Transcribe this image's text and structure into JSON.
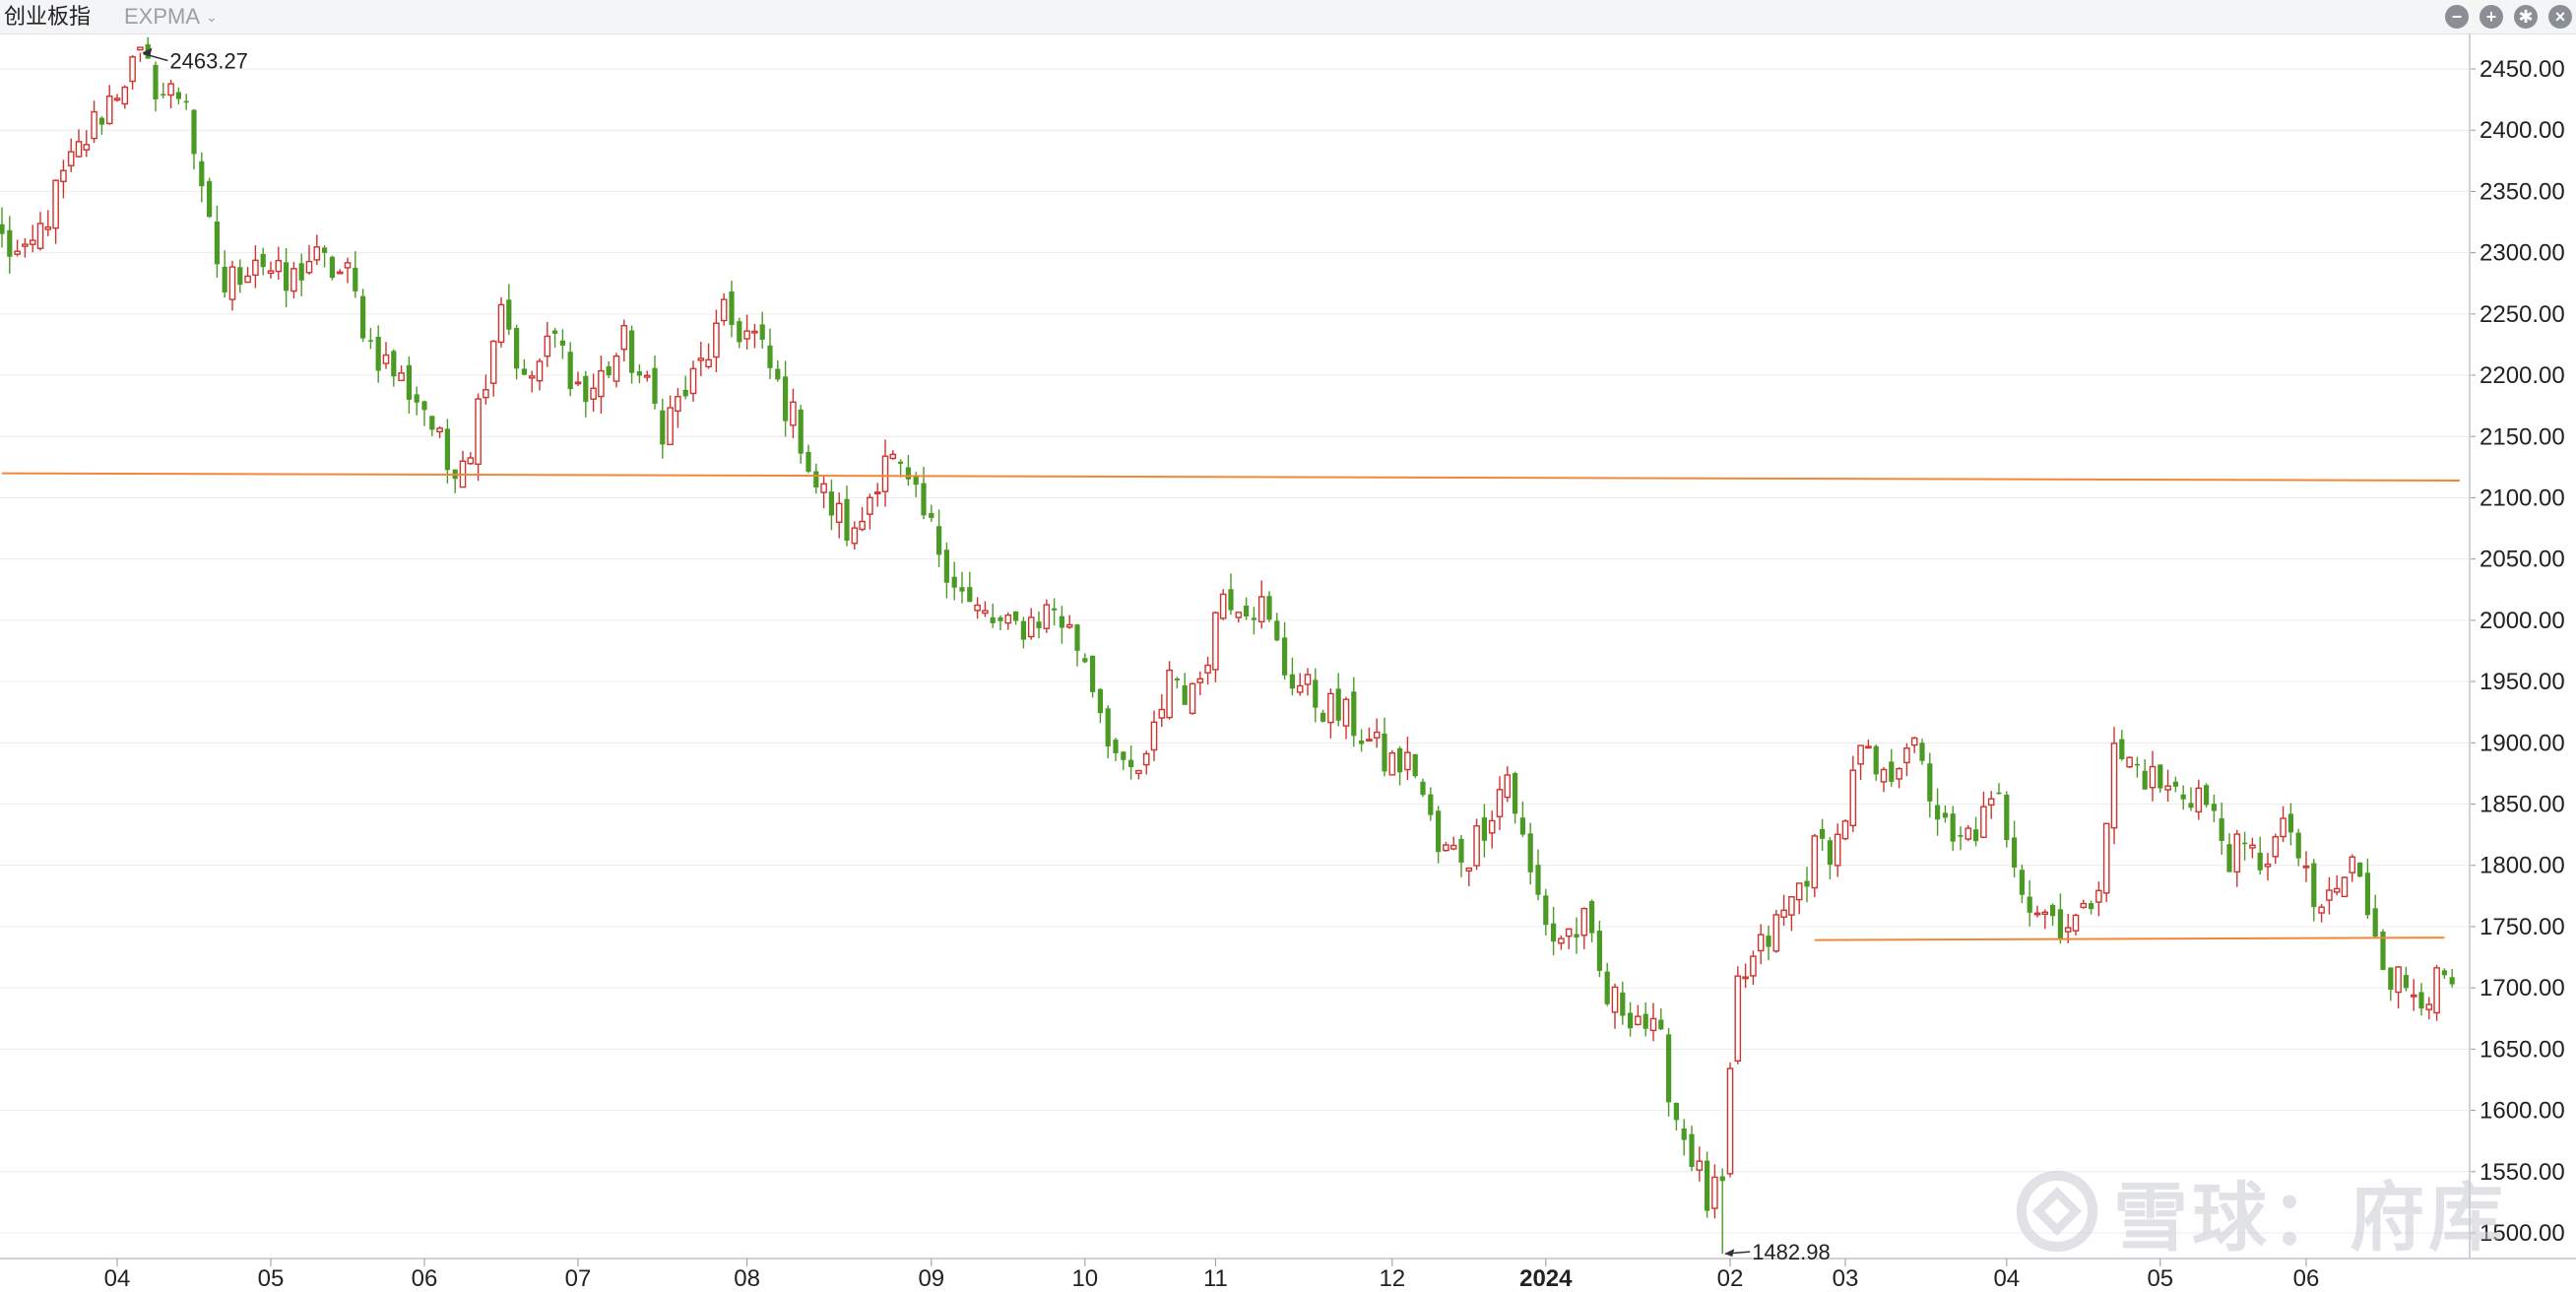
{
  "header": {
    "title": "创业板指",
    "indicator": "EXPMA",
    "tools": [
      {
        "name": "zoom-out-icon",
        "glyph": "−"
      },
      {
        "name": "zoom-in-icon",
        "glyph": "+"
      },
      {
        "name": "gear-icon",
        "glyph": "✱"
      },
      {
        "name": "close-icon",
        "glyph": "×"
      }
    ]
  },
  "watermark": {
    "text": "雪球：府库"
  },
  "colors": {
    "up": "#d0332d",
    "down": "#4b9a24",
    "trendline": "#f0873a",
    "grid": "#ececec",
    "axis": "#cfd2d6",
    "text": "#222222"
  },
  "chart_data": {
    "type": "candlestick",
    "title": "",
    "xlabel": "",
    "ylabel": "",
    "ylim": [
      1480,
      2475
    ],
    "y_ticks": [
      "1500.00",
      "1550.00",
      "1600.00",
      "1650.00",
      "1700.00",
      "1750.00",
      "1800.00",
      "1850.00",
      "1900.00",
      "1950.00",
      "2000.00",
      "2050.00",
      "2100.00",
      "2150.00",
      "2200.00",
      "2250.00",
      "2300.00",
      "2350.00",
      "2400.00",
      "2450.00"
    ],
    "x_ticks": [
      {
        "label": "04",
        "index": 15,
        "bold": false
      },
      {
        "label": "05",
        "index": 35,
        "bold": false
      },
      {
        "label": "06",
        "index": 55,
        "bold": false
      },
      {
        "label": "07",
        "index": 75,
        "bold": false
      },
      {
        "label": "08",
        "index": 97,
        "bold": false
      },
      {
        "label": "09",
        "index": 121,
        "bold": false
      },
      {
        "label": "10",
        "index": 141,
        "bold": false
      },
      {
        "label": "11",
        "index": 158,
        "bold": false
      },
      {
        "label": "12",
        "index": 181,
        "bold": false
      },
      {
        "label": "2024",
        "index": 201,
        "bold": true
      },
      {
        "label": "02",
        "index": 225,
        "bold": false
      },
      {
        "label": "03",
        "index": 240,
        "bold": false
      },
      {
        "label": "04",
        "index": 261,
        "bold": false
      },
      {
        "label": "05",
        "index": 281,
        "bold": false
      },
      {
        "label": "06",
        "index": 300,
        "bold": false
      }
    ],
    "annotations": [
      {
        "text": "2463.27",
        "index": 18,
        "value": 2463.27
      },
      {
        "text": "1482.98",
        "index": 224,
        "value": 1482.98
      }
    ],
    "trendlines": [
      {
        "from": {
          "index": 0,
          "value": 2120
        },
        "to": {
          "index": 320,
          "value": 2114
        }
      },
      {
        "from": {
          "index": 236,
          "value": 1739
        },
        "to": {
          "index": 318,
          "value": 1741
        }
      }
    ],
    "anchors": [
      [
        0,
        2310
      ],
      [
        3,
        2290
      ],
      [
        8,
        2360
      ],
      [
        12,
        2405
      ],
      [
        16,
        2445
      ],
      [
        18,
        2455
      ],
      [
        21,
        2430
      ],
      [
        24,
        2430
      ],
      [
        26,
        2340
      ],
      [
        29,
        2270
      ],
      [
        33,
        2300
      ],
      [
        37,
        2270
      ],
      [
        40,
        2295
      ],
      [
        45,
        2280
      ],
      [
        48,
        2225
      ],
      [
        52,
        2195
      ],
      [
        55,
        2175
      ],
      [
        58,
        2125
      ],
      [
        61,
        2145
      ],
      [
        65,
        2265
      ],
      [
        68,
        2190
      ],
      [
        72,
        2230
      ],
      [
        76,
        2180
      ],
      [
        81,
        2225
      ],
      [
        86,
        2160
      ],
      [
        90,
        2195
      ],
      [
        94,
        2245
      ],
      [
        98,
        2230
      ],
      [
        101,
        2190
      ],
      [
        104,
        2150
      ],
      [
        106,
        2110
      ],
      [
        111,
        2065
      ],
      [
        115,
        2140
      ],
      [
        118,
        2105
      ],
      [
        122,
        2060
      ],
      [
        126,
        2010
      ],
      [
        131,
        1990
      ],
      [
        137,
        2010
      ],
      [
        141,
        1970
      ],
      [
        146,
        1870
      ],
      [
        149,
        1880
      ],
      [
        152,
        1960
      ],
      [
        155,
        1935
      ],
      [
        159,
        2025
      ],
      [
        164,
        2010
      ],
      [
        167,
        1960
      ],
      [
        171,
        1935
      ],
      [
        176,
        1915
      ],
      [
        180,
        1885
      ],
      [
        184,
        1880
      ],
      [
        187,
        1810
      ],
      [
        191,
        1810
      ],
      [
        196,
        1875
      ],
      [
        199,
        1790
      ],
      [
        202,
        1740
      ],
      [
        206,
        1750
      ],
      [
        209,
        1690
      ],
      [
        213,
        1680
      ],
      [
        216,
        1650
      ],
      [
        218,
        1595
      ],
      [
        220,
        1565
      ],
      [
        222,
        1525
      ],
      [
        224,
        1535
      ],
      [
        226,
        1700
      ],
      [
        229,
        1730
      ],
      [
        233,
        1770
      ],
      [
        236,
        1810
      ],
      [
        239,
        1820
      ],
      [
        242,
        1890
      ],
      [
        245,
        1865
      ],
      [
        248,
        1905
      ],
      [
        251,
        1860
      ],
      [
        254,
        1810
      ],
      [
        257,
        1830
      ],
      [
        260,
        1850
      ],
      [
        264,
        1770
      ],
      [
        268,
        1755
      ],
      [
        271,
        1755
      ],
      [
        273,
        1795
      ],
      [
        275,
        1890
      ],
      [
        278,
        1880
      ],
      [
        282,
        1860
      ],
      [
        286,
        1860
      ],
      [
        290,
        1810
      ],
      [
        294,
        1805
      ],
      [
        298,
        1830
      ],
      [
        301,
        1760
      ],
      [
        304,
        1780
      ],
      [
        306,
        1800
      ],
      [
        309,
        1750
      ],
      [
        311,
        1710
      ],
      [
        313,
        1700
      ]
    ],
    "candles_note": "Daily OHLC candles generated deterministically around anchors (index, approx close)."
  }
}
